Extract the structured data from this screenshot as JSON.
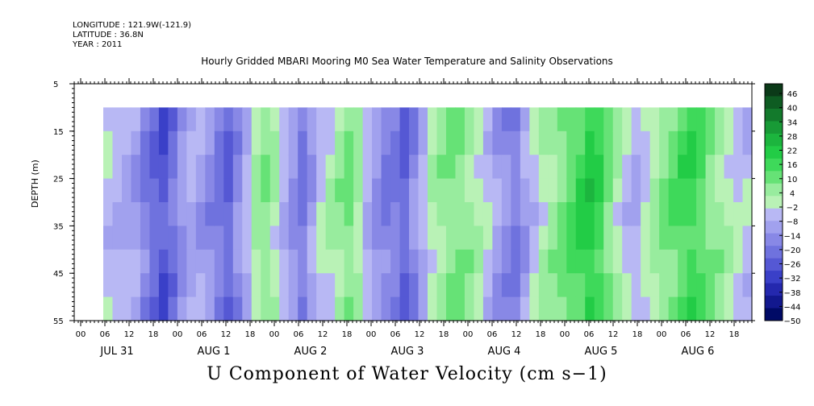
{
  "header": {
    "longitude": "LONGITUDE : 121.9W(-121.9)",
    "latitude": "LATITUDE : 36.8N",
    "year": "YEAR : 2011"
  },
  "chart_data": {
    "type": "heatmap",
    "title": "Hourly Gridded MBARI Mooring M0 Sea Water Temperature and Salinity Observations",
    "xlabel": "U Component of Water Velocity (cm s−1)",
    "ylabel": "DEPTH (m)",
    "y_ticks": [
      5,
      15,
      25,
      35,
      45,
      55
    ],
    "y_range": [
      5,
      55
    ],
    "y_inverted": true,
    "data_depth_range": [
      10,
      55
    ],
    "x_hour_ticks": [
      "00",
      "06",
      "12",
      "18",
      "00",
      "06",
      "12",
      "18",
      "00",
      "06",
      "12",
      "18",
      "00",
      "06",
      "12",
      "18",
      "00",
      "06",
      "12",
      "18",
      "00",
      "06",
      "12",
      "18",
      "00",
      "06",
      "12",
      "18"
    ],
    "x_day_labels": [
      "JUL 31",
      "AUG  1",
      "AUG  2",
      "AUG  3",
      "AUG  4",
      "AUG  5",
      "AUG  6"
    ],
    "colorbar": {
      "levels": [
        "46",
        "40",
        "34",
        "28",
        "22",
        "16",
        "10",
        "4",
        "−2",
        "−8",
        "−14",
        "−20",
        "−26",
        "−32",
        "−38",
        "−44",
        "−50"
      ],
      "colors": [
        "#0b3a18",
        "#0e5c22",
        "#137a2c",
        "#189a36",
        "#1cb53e",
        "#22cc46",
        "#3ed95a",
        "#66e276",
        "#98ec9e",
        "#b9f2b6",
        "#b8b8f4",
        "#a1a1ee",
        "#8888e6",
        "#6f72de",
        "#5558d4",
        "#3a40c8",
        "#2428ae",
        "#12188e",
        "#000a66"
      ],
      "range": [
        -50,
        52
      ]
    },
    "time_columns_u_cm_s": [
      -4,
      -6,
      -8,
      -10,
      -16,
      -22,
      -26,
      -20,
      -12,
      -8,
      -10,
      -14,
      -18,
      -22,
      -14,
      -6,
      4,
      8,
      2,
      -6,
      -12,
      -18,
      -10,
      -2,
      2,
      6,
      10,
      4,
      -6,
      -12,
      -16,
      -18,
      -22,
      -14,
      -6,
      2,
      6,
      8,
      10,
      6,
      2,
      -4,
      -10,
      -14,
      -18,
      -10,
      -4,
      2,
      6,
      10,
      14,
      18,
      22,
      18,
      10,
      2,
      -4,
      -6,
      -2,
      4,
      8,
      12,
      16,
      18,
      14,
      10,
      6,
      2,
      -2,
      -4
    ]
  }
}
